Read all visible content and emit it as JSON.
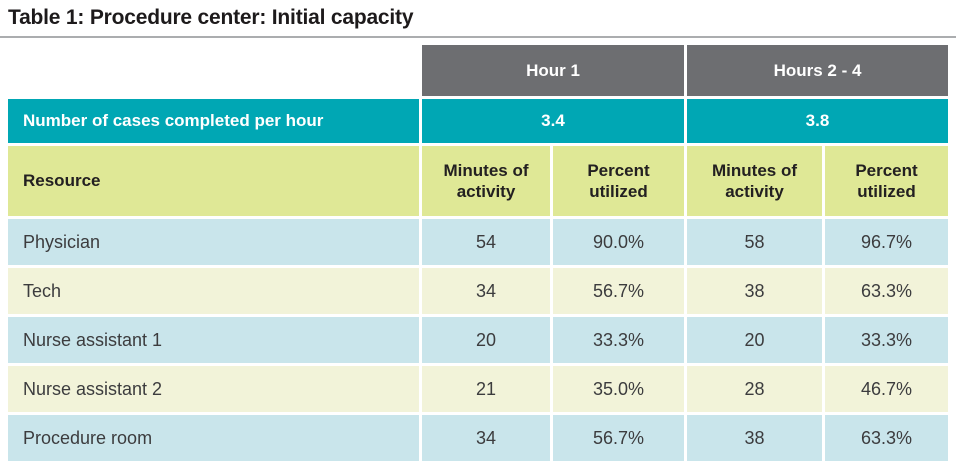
{
  "title": "Table 1: Procedure center: Initial capacity",
  "colors": {
    "group_header_bg": "#6d6e71",
    "cases_row_bg": "#00a7b4",
    "column_header_bg": "#dfe896",
    "row_alt_blue": "#c9e5eb",
    "row_alt_cream": "#f2f3d9",
    "title_rule": "#abadaf",
    "header_text": "#ffffff",
    "body_text": "#3c3c3e"
  },
  "header": {
    "group1": "Hour 1",
    "group2": "Hours 2 - 4"
  },
  "cases_row": {
    "label": "Number of cases completed per hour",
    "hour1": "3.4",
    "hours2_4": "3.8"
  },
  "columns": [
    "Resource",
    "Minutes of activity",
    "Percent utilized",
    "Minutes of activity",
    "Percent utilized"
  ],
  "rows": [
    {
      "name": "Physician",
      "minutes1": "54",
      "percent1": "90.0%",
      "minutes2": "58",
      "percent2": "96.7%"
    },
    {
      "name": "Tech",
      "minutes1": "34",
      "percent1": "56.7%",
      "minutes2": "38",
      "percent2": "63.3%"
    },
    {
      "name": "Nurse assistant 1",
      "minutes1": "20",
      "percent1": "33.3%",
      "minutes2": "20",
      "percent2": "33.3%"
    },
    {
      "name": "Nurse assistant 2",
      "minutes1": "21",
      "percent1": "35.0%",
      "minutes2": "28",
      "percent2": "46.7%"
    },
    {
      "name": "Procedure room",
      "minutes1": "34",
      "percent1": "56.7%",
      "minutes2": "38",
      "percent2": "63.3%"
    }
  ]
}
